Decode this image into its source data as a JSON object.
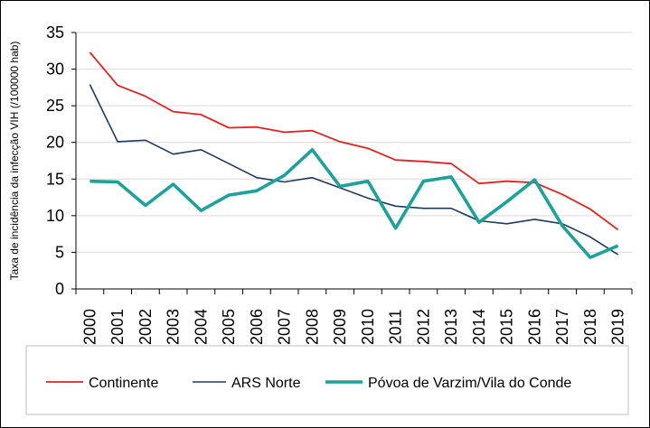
{
  "chart_data": {
    "type": "line",
    "ylabel": "Taxa de incidência da infecção VIH  (/100000 hab)",
    "xlabel": "",
    "ylim": [
      0,
      35
    ],
    "yticks": [
      0,
      5,
      10,
      15,
      20,
      25,
      30,
      35
    ],
    "grid": true,
    "legend_position": "bottom",
    "categories": [
      "2000",
      "2001",
      "2002",
      "2003",
      "2004",
      "2005",
      "2006",
      "2007",
      "2008",
      "2009",
      "2010",
      "2011",
      "2012",
      "2013",
      "2014",
      "2015",
      "2016",
      "2017",
      "2018",
      "2019"
    ],
    "series": [
      {
        "name": "Continente",
        "color": "#e8201e",
        "values": [
          32.3,
          27.8,
          26.3,
          24.2,
          23.8,
          22.0,
          22.1,
          21.4,
          21.6,
          20.1,
          19.2,
          17.6,
          17.4,
          17.1,
          14.4,
          14.7,
          14.5,
          12.9,
          10.9,
          8.1
        ]
      },
      {
        "name": "ARS Norte",
        "color": "#1f3a5f",
        "values": [
          27.9,
          20.1,
          20.3,
          18.4,
          19.0,
          17.1,
          15.2,
          14.6,
          15.2,
          13.8,
          12.4,
          11.3,
          11.0,
          11.0,
          9.3,
          8.9,
          9.5,
          8.9,
          7.1,
          4.7
        ]
      },
      {
        "name": "Póvoa de Varzim/Vila do Conde",
        "color": "#1aa39a",
        "values": [
          14.7,
          14.6,
          11.4,
          14.3,
          10.7,
          12.8,
          13.4,
          15.5,
          19.0,
          14.0,
          14.7,
          8.3,
          14.7,
          15.3,
          9.1,
          11.9,
          14.9,
          8.6,
          4.3,
          5.9
        ]
      }
    ]
  }
}
